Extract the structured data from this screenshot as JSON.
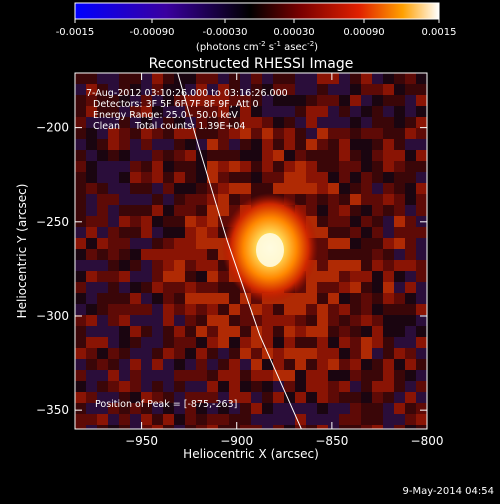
{
  "colorbar": {
    "ticks": [
      "-0.0015",
      "-0.00090",
      "-0.00030",
      "0.00030",
      "0.00090",
      "0.0015"
    ],
    "unit_main": "(photons cm",
    "unit_exp1": "-2",
    "unit_mid": " s",
    "unit_exp2": "-1",
    "unit_end": " asec",
    "unit_exp3": "-2",
    "unit_close": ")"
  },
  "chart_data": {
    "type": "heatmap",
    "title": "Reconstructed RHESSI Image",
    "xlabel": "Heliocentric X (arcsec)",
    "ylabel": "Heliocentric Y (arcsec)",
    "xlim": [
      -985,
      -800
    ],
    "ylim": [
      -360,
      -171
    ],
    "xticks": [
      -950,
      -900,
      -850,
      -800
    ],
    "yticks": [
      -200,
      -250,
      -300,
      -350
    ],
    "colorbar_range": [
      -0.0015,
      0.0015
    ],
    "peak": {
      "x": -875,
      "y": -263
    },
    "annotations": {
      "time": " 7-Aug-2012 03:10:26.000 to 03:16:26.000",
      "detectors": "Detectors: 3F 5F 6F 7F 8F 9F, Att 0",
      "energy": "Energy Range: 25.0 - 50.0 keV",
      "clean": "Clean     Total counts: 1.39E+04",
      "peak_text": "Position of Peak = [-875,-263]"
    },
    "limb_curve": [
      [
        -931,
        -171
      ],
      [
        -920,
        -210
      ],
      [
        -905,
        -260
      ],
      [
        -888,
        -310
      ],
      [
        -866,
        -360
      ]
    ]
  },
  "footer": {
    "date": "9-May-2014 04:54"
  }
}
